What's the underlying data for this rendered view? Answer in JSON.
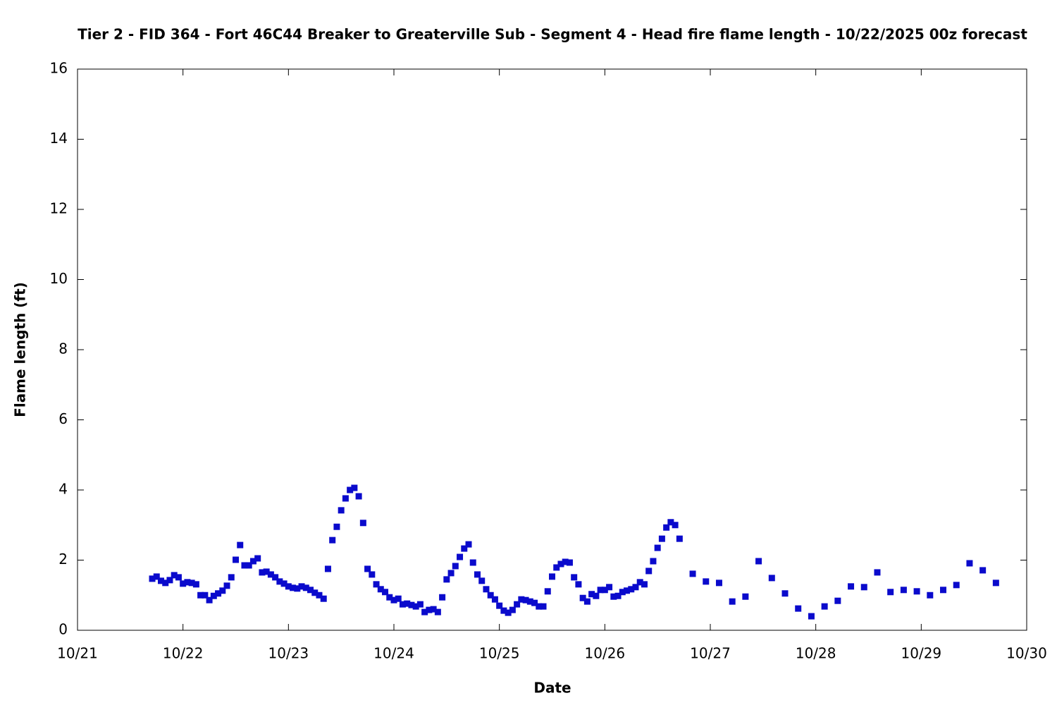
{
  "chart_data": {
    "type": "scatter",
    "title": "Tier 2 - FID 364 - Fort 46C44 Breaker to Greaterville Sub - Segment 4 - Head fire flame length - 10/22/2025 00z forecast",
    "x_label": "Date",
    "y_label": "Flame length (ft)",
    "xlim": [
      0,
      216
    ],
    "xticks": [
      {
        "value": 0,
        "label": "10/21"
      },
      {
        "value": 24,
        "label": "10/22"
      },
      {
        "value": 48,
        "label": "10/23"
      },
      {
        "value": 72,
        "label": "10/24"
      },
      {
        "value": 96,
        "label": "10/25"
      },
      {
        "value": 120,
        "label": "10/26"
      },
      {
        "value": 144,
        "label": "10/27"
      },
      {
        "value": 168,
        "label": "10/28"
      },
      {
        "value": 192,
        "label": "10/29"
      },
      {
        "value": 216,
        "label": "10/30"
      }
    ],
    "ylim": [
      0,
      16
    ],
    "yticks": [
      0,
      2,
      4,
      6,
      8,
      10,
      12,
      14,
      16
    ],
    "grid": false,
    "series": [
      {
        "color": "#0a0acc",
        "x": [
          17,
          18,
          19,
          20,
          21,
          22,
          23,
          24,
          25,
          26,
          27,
          28,
          29,
          30,
          31,
          32,
          33,
          34,
          35,
          36,
          37,
          38,
          39,
          40,
          41,
          42,
          43,
          44,
          45,
          46,
          47,
          48,
          49,
          50,
          51,
          52,
          53,
          54,
          55,
          56,
          57,
          58,
          59,
          60,
          61,
          62,
          63,
          64,
          65,
          66,
          67,
          68,
          69,
          70,
          71,
          72,
          73,
          74,
          75,
          76,
          77,
          78,
          79,
          80,
          81,
          82,
          83,
          84,
          85,
          86,
          87,
          88,
          89,
          90,
          91,
          92,
          93,
          94,
          95,
          96,
          97,
          98,
          99,
          100,
          101,
          102,
          103,
          104,
          105,
          106,
          107,
          108,
          109,
          110,
          111,
          112,
          113,
          114,
          115,
          116,
          117,
          118,
          119,
          120,
          121,
          122,
          123,
          124,
          125,
          126,
          127,
          128,
          129,
          130,
          131,
          132,
          133,
          134,
          135,
          136,
          137,
          140,
          143,
          146,
          149,
          152,
          155,
          158,
          161,
          164,
          167,
          170,
          173,
          176,
          179,
          182,
          185,
          188,
          191,
          194,
          197,
          200,
          203,
          206,
          209
        ],
        "values": [
          1.47,
          1.53,
          1.41,
          1.35,
          1.43,
          1.57,
          1.51,
          1.33,
          1.37,
          1.35,
          1.31,
          1.0,
          1.0,
          0.86,
          0.98,
          1.05,
          1.13,
          1.27,
          1.51,
          2.01,
          2.43,
          1.85,
          1.85,
          1.97,
          2.05,
          1.65,
          1.67,
          1.59,
          1.51,
          1.39,
          1.33,
          1.25,
          1.21,
          1.19,
          1.25,
          1.21,
          1.15,
          1.07,
          1.0,
          0.9,
          1.75,
          2.57,
          2.95,
          3.42,
          3.76,
          4.0,
          4.06,
          3.82,
          3.06,
          1.75,
          1.59,
          1.31,
          1.17,
          1.09,
          0.94,
          0.86,
          0.9,
          0.74,
          0.76,
          0.72,
          0.68,
          0.74,
          0.52,
          0.58,
          0.6,
          0.52,
          0.94,
          1.45,
          1.63,
          1.83,
          2.09,
          2.33,
          2.45,
          1.93,
          1.59,
          1.41,
          1.17,
          1.0,
          0.88,
          0.7,
          0.56,
          0.5,
          0.58,
          0.74,
          0.88,
          0.86,
          0.82,
          0.78,
          0.68,
          0.68,
          1.11,
          1.53,
          1.79,
          1.89,
          1.95,
          1.93,
          1.51,
          1.31,
          0.92,
          0.82,
          1.03,
          0.98,
          1.15,
          1.15,
          1.23,
          0.96,
          0.98,
          1.09,
          1.13,
          1.17,
          1.23,
          1.37,
          1.31,
          1.69,
          1.97,
          2.35,
          2.61,
          2.93,
          3.08,
          3.0,
          2.61,
          1.61,
          1.39,
          1.35,
          0.82,
          0.96,
          1.97,
          1.49,
          1.05,
          0.62,
          0.4,
          0.68,
          0.84,
          1.25,
          1.23,
          1.65,
          1.09,
          1.15,
          1.11,
          1.0,
          1.15,
          1.29,
          1.91,
          1.71,
          1.35
        ]
      }
    ]
  }
}
